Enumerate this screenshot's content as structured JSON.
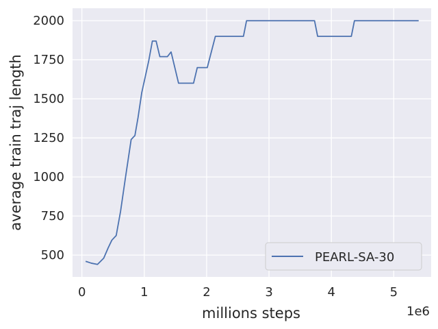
{
  "chart_data": {
    "type": "line",
    "title": "",
    "xlabel": "millions steps",
    "ylabel": "average train traj length",
    "x_offset_label": "1e6",
    "xlim": [
      -150000,
      5600000
    ],
    "ylim": [
      360,
      2080
    ],
    "x_ticks": [
      0,
      1000000,
      2000000,
      3000000,
      4000000,
      5000000
    ],
    "x_tick_labels": [
      "0",
      "1",
      "2",
      "3",
      "4",
      "5"
    ],
    "y_ticks": [
      500,
      750,
      1000,
      1250,
      1500,
      1750,
      2000
    ],
    "y_tick_labels": [
      "500",
      "750",
      "1000",
      "1250",
      "1500",
      "1750",
      "2000"
    ],
    "grid": true,
    "legend_position": "lower-right",
    "colors": {
      "plot_background": "#eaeaf2",
      "grid": "#ffffff",
      "line": "#4c72b0"
    },
    "series": [
      {
        "name": "PEARL-SA-30",
        "color": "#4c72b0",
        "x": [
          60000,
          150000,
          250000,
          350000,
          420000,
          480000,
          550000,
          620000,
          700000,
          790000,
          850000,
          900000,
          960000,
          1070000,
          1130000,
          1190000,
          1250000,
          1370000,
          1430000,
          1550000,
          1790000,
          1850000,
          2010000,
          2140000,
          2590000,
          2640000,
          3730000,
          3780000,
          4320000,
          4370000,
          5400000
        ],
        "y": [
          460,
          448,
          440,
          480,
          545,
          595,
          625,
          780,
          1000,
          1240,
          1265,
          1380,
          1540,
          1740,
          1870,
          1870,
          1770,
          1770,
          1800,
          1600,
          1600,
          1700,
          1700,
          1900,
          1900,
          2000,
          2000,
          1900,
          1900,
          2000,
          2000
        ]
      }
    ]
  }
}
